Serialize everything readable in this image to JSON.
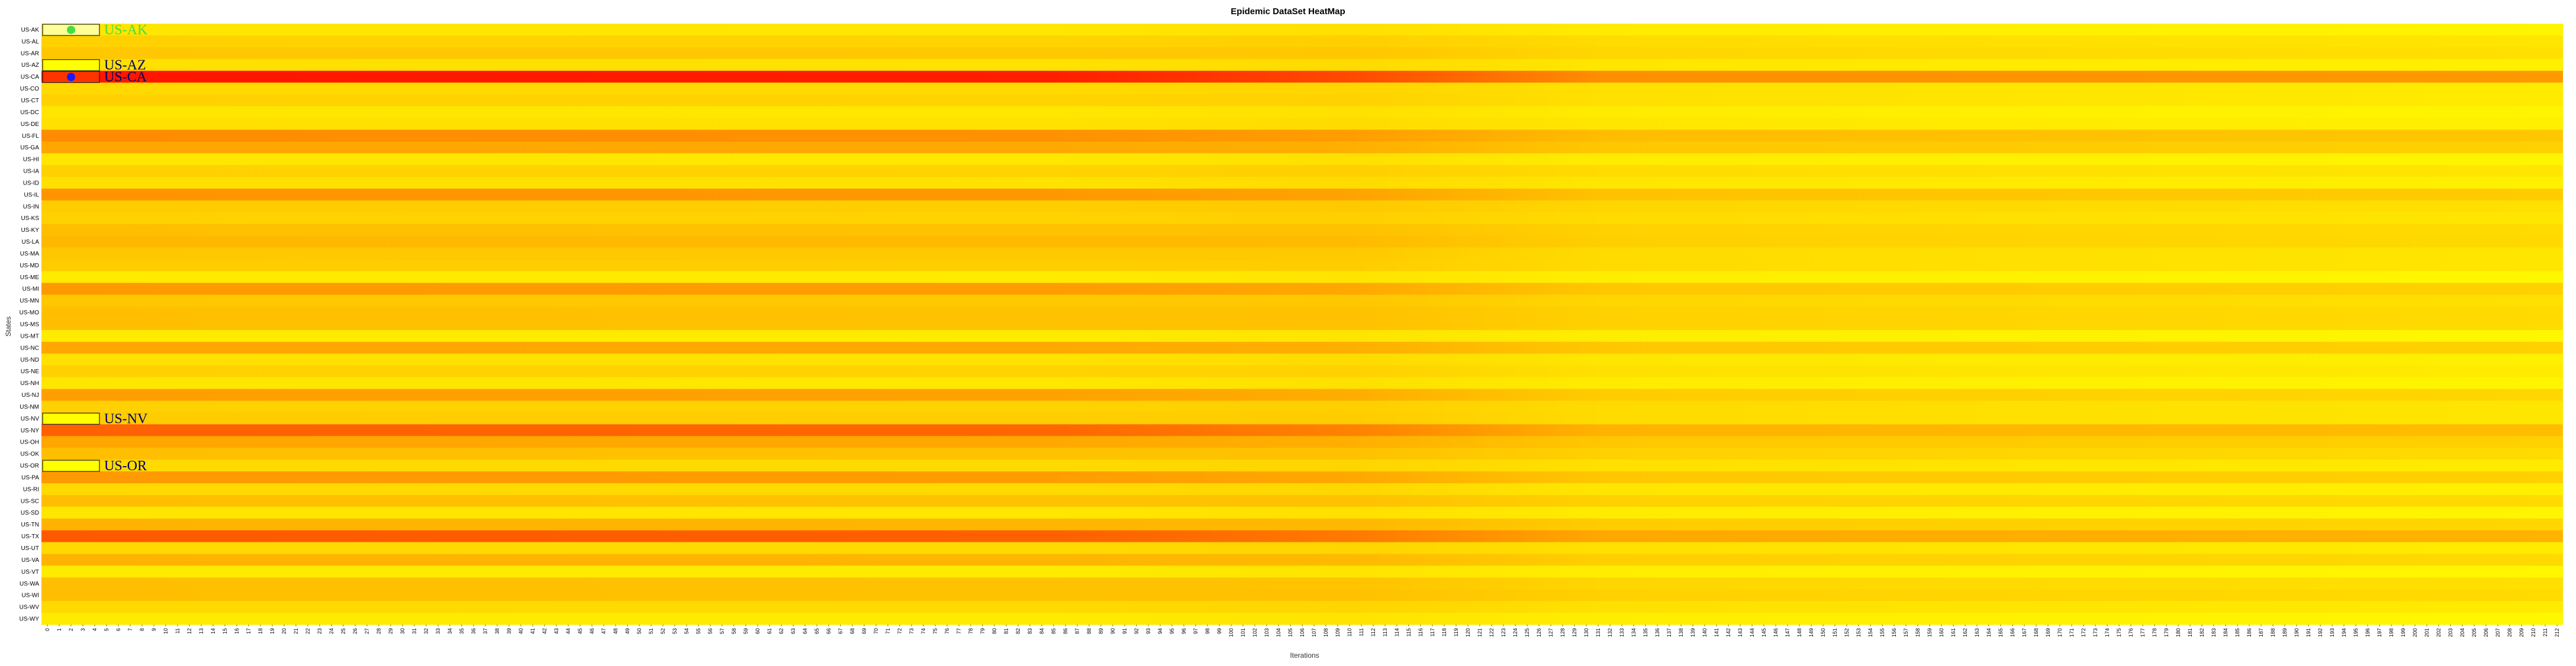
{
  "chart_data": {
    "type": "heatmap",
    "title": "Epidemic DataSet HeatMap",
    "xlabel": "Iterations",
    "ylabel": "States",
    "grid": false,
    "x": {
      "start": 0,
      "end": 212,
      "tick_step": 1,
      "note": "x ticks 0,1,2,... up to 212 (one column per iteration)"
    },
    "y_categories": [
      "US-AK",
      "US-AL",
      "US-AR",
      "US-AZ",
      "US-CA",
      "US-CO",
      "US-CT",
      "US-DC",
      "US-DE",
      "US-FL",
      "US-GA",
      "US-HI",
      "US-IA",
      "US-ID",
      "US-IL",
      "US-IN",
      "US-KS",
      "US-KY",
      "US-LA",
      "US-MA",
      "US-MD",
      "US-ME",
      "US-MI",
      "US-MN",
      "US-MO",
      "US-MS",
      "US-MT",
      "US-NC",
      "US-ND",
      "US-NE",
      "US-NH",
      "US-NJ",
      "US-NM",
      "US-NV",
      "US-NY",
      "US-OH",
      "US-OK",
      "US-OR",
      "US-PA",
      "US-RI",
      "US-SC",
      "US-SD",
      "US-TN",
      "US-TX",
      "US-UT",
      "US-VA",
      "US-VT",
      "US-WA",
      "US-WI",
      "US-WV",
      "US-WY"
    ],
    "color_scale": {
      "low": "#ffff00",
      "mid": "#ffa500",
      "high": "#ff0000"
    },
    "row_intensity_start": [
      0.1,
      0.18,
      0.22,
      0.12,
      0.92,
      0.15,
      0.18,
      0.1,
      0.12,
      0.45,
      0.35,
      0.1,
      0.18,
      0.12,
      0.42,
      0.2,
      0.18,
      0.25,
      0.28,
      0.22,
      0.2,
      0.08,
      0.4,
      0.22,
      0.25,
      0.25,
      0.08,
      0.35,
      0.12,
      0.18,
      0.1,
      0.38,
      0.18,
      0.2,
      0.62,
      0.35,
      0.25,
      0.15,
      0.4,
      0.15,
      0.25,
      0.1,
      0.3,
      0.65,
      0.15,
      0.3,
      0.08,
      0.25,
      0.25,
      0.15,
      0.08
    ],
    "row_intensity_end": [
      0.04,
      0.1,
      0.12,
      0.06,
      0.4,
      0.08,
      0.08,
      0.04,
      0.06,
      0.22,
      0.18,
      0.04,
      0.1,
      0.06,
      0.2,
      0.12,
      0.1,
      0.14,
      0.15,
      0.1,
      0.1,
      0.03,
      0.18,
      0.12,
      0.14,
      0.14,
      0.03,
      0.18,
      0.06,
      0.08,
      0.04,
      0.16,
      0.1,
      0.1,
      0.26,
      0.18,
      0.14,
      0.08,
      0.18,
      0.06,
      0.14,
      0.04,
      0.16,
      0.3,
      0.08,
      0.15,
      0.03,
      0.12,
      0.14,
      0.08,
      0.03
    ],
    "legend": [
      {
        "label": "US-AK",
        "text_color": "#44dd44",
        "marker": "circle",
        "marker_color": "#44dd44",
        "box_fill": "#ffff99"
      },
      {
        "label": "US-AZ",
        "text_color": "#000066",
        "marker": "none",
        "marker_color": "",
        "box_fill": "#ffff00"
      },
      {
        "label": "US-CA",
        "text_color": "#000066",
        "marker": "circle",
        "marker_color": "#1a1aff",
        "box_fill": "#ff3300"
      },
      {
        "label": "US-NV",
        "text_color": "#000066",
        "marker": "none",
        "marker_color": "",
        "box_fill": "#ffff00"
      },
      {
        "label": "US-OR",
        "text_color": "#000066",
        "marker": "none",
        "marker_color": "",
        "box_fill": "#ffff00"
      }
    ]
  }
}
